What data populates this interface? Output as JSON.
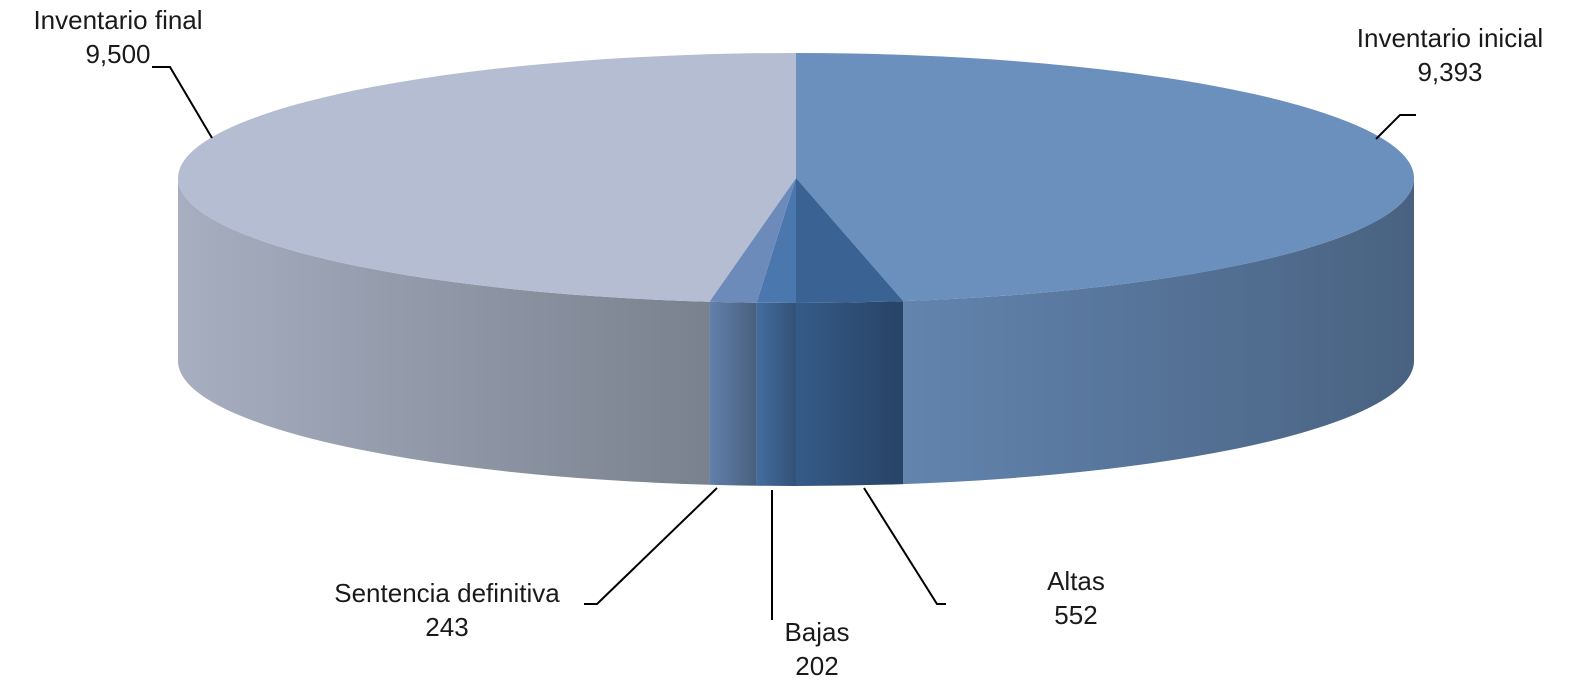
{
  "chart_data": {
    "type": "pie",
    "style": "3d",
    "title": "",
    "slices": [
      {
        "label": "Inventario inicial",
        "value": 9393,
        "value_label": "9,393",
        "color": "#6b90bd"
      },
      {
        "label": "Altas",
        "value": 552,
        "value_label": "552",
        "color": "#3a6394"
      },
      {
        "label": "Bajas",
        "value": 202,
        "value_label": "202",
        "color": "#4a77ad"
      },
      {
        "label": "Sentencia definitiva",
        "value": 243,
        "value_label": "243",
        "color": "#6c8bba"
      },
      {
        "label": "Inventario final",
        "value": 9500,
        "value_label": "9,500",
        "color": "#b4bdd1"
      }
    ],
    "legend": "none"
  }
}
